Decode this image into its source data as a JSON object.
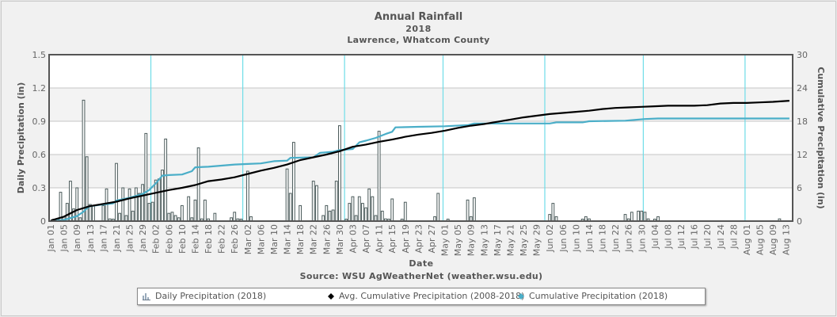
{
  "chart_data": {
    "type": "bar+line",
    "title": "Annual Rainfall",
    "subtitle_year": "2018",
    "subtitle_location": "Lawrence, Whatcom County",
    "xlabel": "Date",
    "source": "Source:  WSU AgWeatherNet (weather.wsu.edu)",
    "y_left": {
      "label": "Daily Precipitation (in)",
      "range": [
        0,
        1.5
      ],
      "ticks": [
        "0",
        "0.3",
        "0.6",
        "0.9",
        "1.2",
        "1.5"
      ]
    },
    "y_right": {
      "label": "Cumulative Precipitation (in)",
      "range": [
        0,
        30
      ],
      "ticks": [
        "0",
        "6",
        "12",
        "18",
        "24",
        "30"
      ]
    },
    "x_ticks": [
      "Jan 01",
      "Jan 05",
      "Jan 09",
      "Jan 13",
      "Jan 17",
      "Jan 21",
      "Jan 25",
      "Jan 29",
      "Feb 02",
      "Feb 06",
      "Feb 10",
      "Feb 14",
      "Feb 18",
      "Feb 22",
      "Feb 26",
      "Mar 02",
      "Mar 06",
      "Mar 10",
      "Mar 14",
      "Mar 18",
      "Mar 22",
      "Mar 26",
      "Mar 30",
      "Apr 03",
      "Apr 07",
      "Apr 11",
      "Apr 15",
      "Apr 19",
      "Apr 23",
      "Apr 27",
      "May 01",
      "May 05",
      "May 09",
      "May 13",
      "May 17",
      "May 21",
      "May 25",
      "May 29",
      "Jun 02",
      "Jun 06",
      "Jun 10",
      "Jun 14",
      "Jun 18",
      "Jun 22",
      "Jun 26",
      "Jun 30",
      "Jul 04",
      "Jul 08",
      "Jul 12",
      "Jul 16",
      "Jul 20",
      "Jul 24",
      "Jul 28",
      "Aug 01",
      "Aug 05",
      "Aug 09",
      "Aug 13"
    ],
    "x_day_range": [
      1,
      227
    ],
    "month_start_days": [
      32,
      60,
      91,
      121,
      152,
      182,
      213
    ],
    "grid": true,
    "legend_position": "bottom",
    "legend": [
      "Daily Precipitation (2018)",
      "Avg. Cumulative Precipitation (2008-2018)",
      "Cumulative Precipitation (2018)"
    ],
    "series": [
      {
        "name": "Daily Precipitation (2018)",
        "type": "bar",
        "color": "#4a5a5a",
        "days": [
          2,
          3,
          4,
          5,
          6,
          7,
          8,
          9,
          10,
          11,
          12,
          13,
          14,
          17,
          18,
          19,
          20,
          21,
          22,
          23,
          24,
          25,
          26,
          27,
          28,
          29,
          30,
          31,
          32,
          33,
          34,
          35,
          36,
          37,
          38,
          39,
          40,
          41,
          43,
          44,
          45,
          46,
          47,
          48,
          49,
          51,
          56,
          57,
          58,
          59,
          61,
          62,
          73,
          74,
          75,
          77,
          81,
          82,
          84,
          85,
          86,
          87,
          88,
          89,
          91,
          92,
          93,
          94,
          95,
          96,
          97,
          98,
          99,
          100,
          101,
          102,
          103,
          104,
          105,
          108,
          109,
          118,
          119,
          122,
          128,
          129,
          130,
          153,
          154,
          155,
          163,
          164,
          165,
          176,
          177,
          178,
          180,
          181,
          182,
          183,
          185,
          186,
          223
        ],
        "values": [
          0.01,
          0.02,
          0.26,
          0.04,
          0.16,
          0.36,
          0.11,
          0.3,
          0.03,
          1.09,
          0.58,
          0.15,
          0.14,
          0.14,
          0.29,
          0.02,
          0.01,
          0.52,
          0.07,
          0.3,
          0.05,
          0.29,
          0.09,
          0.3,
          0.25,
          0.33,
          0.79,
          0.16,
          0.17,
          0.37,
          0.38,
          0.46,
          0.74,
          0.07,
          0.08,
          0.05,
          0.03,
          0.14,
          0.22,
          0.03,
          0.19,
          0.66,
          0.02,
          0.19,
          0.02,
          0.07,
          0.03,
          0.08,
          0.02,
          0.01,
          0.45,
          0.04,
          0.47,
          0.25,
          0.71,
          0.14,
          0.36,
          0.32,
          0.05,
          0.14,
          0.09,
          0.1,
          0.36,
          0.86,
          0.01,
          0.16,
          0.22,
          0.05,
          0.22,
          0.16,
          0.12,
          0.29,
          0.22,
          0.05,
          0.81,
          0.09,
          0.02,
          0.01,
          0.2,
          0.01,
          0.17,
          0.04,
          0.25,
          0.01,
          0.19,
          0.04,
          0.21,
          0.06,
          0.16,
          0.04,
          0.01,
          0.04,
          0.02,
          0.06,
          0.02,
          0.08,
          0.09,
          0.09,
          0.08,
          0.02,
          0.01,
          0.04,
          0.02
        ]
      },
      {
        "name": "Avg. Cumulative Precipitation (2008-2018)",
        "type": "line",
        "axis": "right",
        "color": "#000000",
        "days": [
          1,
          5,
          9,
          13,
          17,
          21,
          25,
          29,
          33,
          37,
          41,
          45,
          49,
          53,
          57,
          61,
          65,
          69,
          73,
          77,
          81,
          85,
          89,
          93,
          97,
          101,
          105,
          109,
          113,
          117,
          121,
          125,
          129,
          133,
          137,
          141,
          145,
          149,
          153,
          157,
          161,
          165,
          169,
          173,
          177,
          181,
          185,
          189,
          193,
          197,
          201,
          205,
          209,
          213,
          217,
          221,
          226
        ],
        "values": [
          0.1,
          0.8,
          2.0,
          2.7,
          3.1,
          3.5,
          4.1,
          4.6,
          5.1,
          5.6,
          6.0,
          6.5,
          7.2,
          7.5,
          7.9,
          8.5,
          9.1,
          9.6,
          10.2,
          11.0,
          11.5,
          12.0,
          12.6,
          13.4,
          13.8,
          14.3,
          14.7,
          15.2,
          15.6,
          15.9,
          16.3,
          16.8,
          17.2,
          17.5,
          17.9,
          18.3,
          18.7,
          19.0,
          19.3,
          19.5,
          19.7,
          19.9,
          20.2,
          20.4,
          20.5,
          20.6,
          20.7,
          20.8,
          20.8,
          20.8,
          20.9,
          21.2,
          21.3,
          21.3,
          21.4,
          21.5,
          21.7
        ]
      },
      {
        "name": "Cumulative Precipitation (2018)",
        "type": "line",
        "axis": "right",
        "color": "#4aaec8",
        "days": [
          1,
          5,
          9,
          11,
          12,
          13,
          17,
          20,
          21,
          25,
          29,
          31,
          33,
          35,
          37,
          41,
          44,
          45,
          49,
          53,
          57,
          61,
          65,
          69,
          73,
          74,
          81,
          83,
          87,
          89,
          93,
          95,
          97,
          100,
          103,
          105,
          106,
          113,
          121,
          128,
          130,
          153,
          155,
          163,
          165,
          176,
          178,
          182,
          186,
          226
        ],
        "values": [
          0.0,
          0.2,
          0.9,
          1.7,
          2.3,
          2.7,
          3.0,
          3.2,
          3.7,
          4.2,
          4.9,
          5.6,
          6.8,
          8.2,
          8.3,
          8.4,
          9.0,
          9.7,
          9.8,
          10.0,
          10.2,
          10.3,
          10.4,
          10.8,
          10.9,
          11.4,
          11.5,
          12.3,
          12.5,
          12.8,
          13.0,
          14.2,
          14.5,
          15.0,
          15.7,
          16.1,
          16.9,
          17.0,
          17.1,
          17.3,
          17.6,
          17.6,
          17.8,
          17.8,
          18.0,
          18.1,
          18.2,
          18.4,
          18.5,
          18.5
        ]
      }
    ]
  }
}
